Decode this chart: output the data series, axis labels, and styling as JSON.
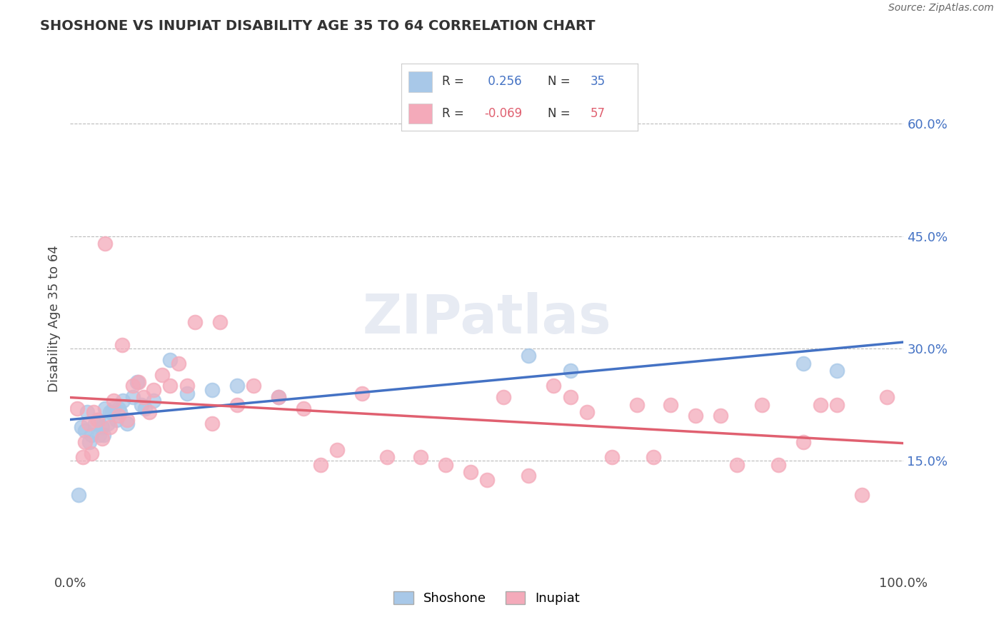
{
  "title": "SHOSHONE VS INUPIAT DISABILITY AGE 35 TO 64 CORRELATION CHART",
  "source": "Source: ZipAtlas.com",
  "ylabel": "Disability Age 35 to 64",
  "xlim": [
    0.0,
    1.0
  ],
  "ylim": [
    0.0,
    0.68
  ],
  "xticks": [
    0.0,
    1.0
  ],
  "xtick_labels": [
    "0.0%",
    "100.0%"
  ],
  "yticks": [
    0.15,
    0.3,
    0.45,
    0.6
  ],
  "ytick_labels": [
    "15.0%",
    "30.0%",
    "45.0%",
    "60.0%"
  ],
  "legend_labels": [
    "Shoshone",
    "Inupiat"
  ],
  "shoshone_R": 0.256,
  "shoshone_N": 35,
  "inupiat_R": -0.069,
  "inupiat_N": 57,
  "shoshone_color": "#a8c8e8",
  "inupiat_color": "#f4aaba",
  "shoshone_line_color": "#4472c4",
  "inupiat_line_color": "#e06070",
  "background_color": "#ffffff",
  "grid_color": "#bbbbbb",
  "watermark": "ZIPatlas",
  "shoshone_x": [
    0.01,
    0.013,
    0.018,
    0.02,
    0.023,
    0.025,
    0.03,
    0.033,
    0.035,
    0.038,
    0.04,
    0.042,
    0.045,
    0.048,
    0.05,
    0.052,
    0.055,
    0.058,
    0.06,
    0.063,
    0.068,
    0.075,
    0.08,
    0.085,
    0.09,
    0.1,
    0.12,
    0.14,
    0.17,
    0.2,
    0.25,
    0.55,
    0.6,
    0.88,
    0.92
  ],
  "shoshone_y": [
    0.105,
    0.195,
    0.19,
    0.215,
    0.175,
    0.185,
    0.2,
    0.205,
    0.185,
    0.195,
    0.185,
    0.22,
    0.2,
    0.215,
    0.215,
    0.22,
    0.205,
    0.22,
    0.215,
    0.23,
    0.2,
    0.235,
    0.255,
    0.225,
    0.22,
    0.23,
    0.285,
    0.24,
    0.245,
    0.25,
    0.235,
    0.29,
    0.27,
    0.28,
    0.27
  ],
  "inupiat_x": [
    0.008,
    0.015,
    0.018,
    0.022,
    0.025,
    0.028,
    0.032,
    0.038,
    0.042,
    0.048,
    0.052,
    0.058,
    0.062,
    0.068,
    0.075,
    0.082,
    0.088,
    0.095,
    0.1,
    0.11,
    0.12,
    0.13,
    0.14,
    0.15,
    0.17,
    0.18,
    0.2,
    0.22,
    0.25,
    0.28,
    0.3,
    0.32,
    0.35,
    0.38,
    0.42,
    0.45,
    0.48,
    0.5,
    0.52,
    0.55,
    0.58,
    0.6,
    0.62,
    0.65,
    0.68,
    0.7,
    0.72,
    0.75,
    0.78,
    0.8,
    0.83,
    0.85,
    0.88,
    0.9,
    0.92,
    0.95,
    0.98
  ],
  "inupiat_y": [
    0.22,
    0.155,
    0.175,
    0.2,
    0.16,
    0.215,
    0.205,
    0.18,
    0.44,
    0.195,
    0.23,
    0.21,
    0.305,
    0.205,
    0.25,
    0.255,
    0.235,
    0.215,
    0.245,
    0.265,
    0.25,
    0.28,
    0.25,
    0.335,
    0.2,
    0.335,
    0.225,
    0.25,
    0.235,
    0.22,
    0.145,
    0.165,
    0.24,
    0.155,
    0.155,
    0.145,
    0.135,
    0.125,
    0.235,
    0.13,
    0.25,
    0.235,
    0.215,
    0.155,
    0.225,
    0.155,
    0.225,
    0.21,
    0.21,
    0.145,
    0.225,
    0.145,
    0.175,
    0.225,
    0.225,
    0.105,
    0.235
  ]
}
